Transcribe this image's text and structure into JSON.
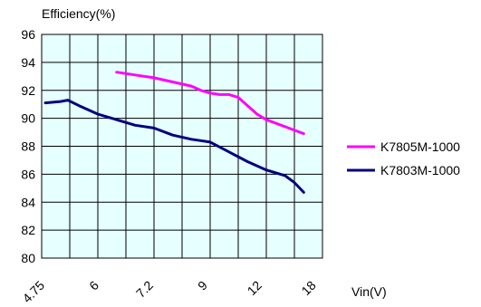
{
  "chart_data": {
    "type": "line",
    "ylabel": "Efficiency(%)",
    "xlabel": "Vin(V)",
    "x_tick_labels": [
      "4.75",
      "6",
      "7.2",
      "9",
      "12",
      "18"
    ],
    "y_ticks": [
      80,
      82,
      84,
      86,
      88,
      90,
      92,
      94,
      96
    ],
    "ylim": [
      80,
      96
    ],
    "grid": true,
    "legend_position": "right",
    "plot_background": "#E6FFFF",
    "series": [
      {
        "name": "K7805M-1000",
        "color": "#FF00FF",
        "x_index": [
          2,
          2.5,
          3,
          3.5,
          4,
          4.25,
          4.5,
          4.75,
          5,
          5.25,
          5.5,
          5.75,
          6,
          6.5,
          7
        ],
        "values": [
          93.3,
          93.1,
          92.9,
          92.6,
          92.3,
          92.0,
          91.8,
          91.7,
          91.7,
          91.5,
          90.9,
          90.3,
          89.9,
          89.4,
          88.9
        ]
      },
      {
        "name": "K7803M-1000",
        "color": "#000080",
        "x_index": [
          0.1,
          0.5,
          0.7,
          1,
          1.5,
          2,
          2.5,
          3,
          3.5,
          4,
          4.25,
          4.5,
          5,
          5.5,
          6,
          6.25,
          6.5,
          6.75,
          7
        ],
        "values": [
          91.1,
          91.2,
          91.3,
          90.9,
          90.3,
          89.9,
          89.5,
          89.3,
          88.8,
          88.5,
          88.4,
          88.3,
          87.6,
          86.9,
          86.3,
          86.1,
          85.9,
          85.4,
          84.7
        ]
      }
    ]
  }
}
